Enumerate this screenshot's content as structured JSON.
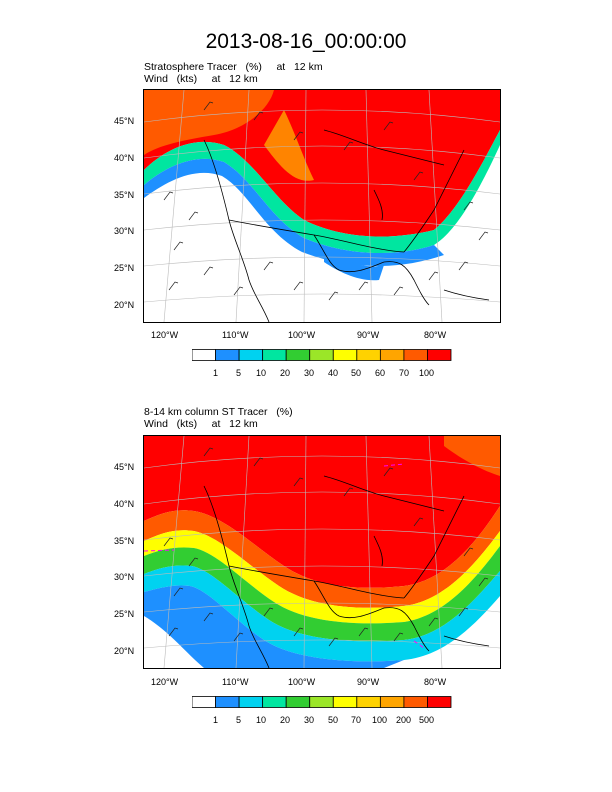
{
  "title": "2013-08-16_00:00:00",
  "panels": [
    {
      "id": "top",
      "label_line1": "Stratosphere Tracer   (%)     at   12 km",
      "label_line2": "Wind   (kts)     at   12 km",
      "lat_labels": [
        "45°N",
        "40°N",
        "35°N",
        "30°N",
        "25°N",
        "20°N"
      ],
      "lon_labels": [
        "120°W",
        "110°W",
        "100°W",
        "90°W",
        "80°W"
      ],
      "colorbar_labels": [
        "1",
        "5",
        "10",
        "20",
        "30",
        "40",
        "50",
        "60",
        "70",
        "100"
      ],
      "colorbar_colors": [
        "#ffffff",
        "#1e90ff",
        "#00d2f0",
        "#00e6a0",
        "#32cd32",
        "#9be628",
        "#ffff00",
        "#ffd200",
        "#ffa500",
        "#ff5a00",
        "#ff0000"
      ]
    },
    {
      "id": "bottom",
      "label_line1": "8-14 km column ST Tracer   (%)",
      "label_line2": "Wind   (kts)     at   12 km",
      "lat_labels": [
        "45°N",
        "40°N",
        "35°N",
        "30°N",
        "25°N",
        "20°N"
      ],
      "lon_labels": [
        "120°W",
        "110°W",
        "100°W",
        "90°W",
        "80°W"
      ],
      "colorbar_labels": [
        "1",
        "5",
        "10",
        "20",
        "30",
        "50",
        "70",
        "100",
        "200",
        "500"
      ],
      "colorbar_colors": [
        "#ffffff",
        "#1e90ff",
        "#00d2f0",
        "#00e6a0",
        "#32cd32",
        "#9be628",
        "#ffff00",
        "#ffd200",
        "#ffa500",
        "#ff5a00",
        "#ff0000"
      ]
    }
  ]
}
